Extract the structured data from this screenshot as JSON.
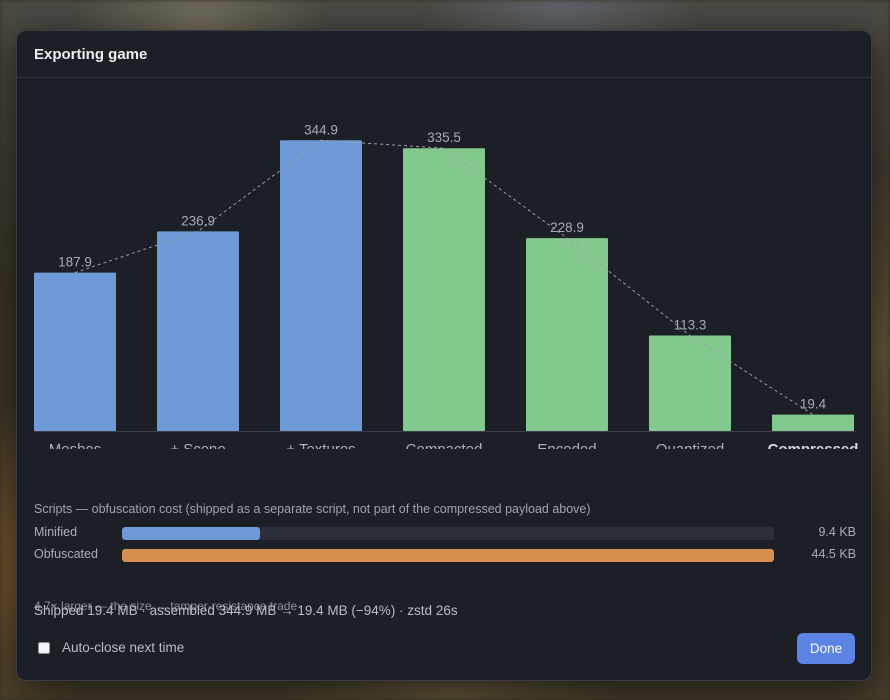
{
  "dialog": {
    "title": "Exporting game",
    "scripts": {
      "caption": "Scripts — obfuscation cost (shipped as a separate script, not part of the compressed payload above)",
      "rows": [
        {
          "label": "Minified",
          "value": "9.4 KB",
          "fraction": 0.211,
          "color": "#6f9ad8"
        },
        {
          "label": "Obfuscated",
          "value": "44.5 KB",
          "fraction": 1.0,
          "color": "#d8904f"
        }
      ],
      "note": "4.7× larger — the size ↔ tamper-resistance trade"
    },
    "summary": "Shipped 19.4 MB · assembled 344.9 MB → 19.4 MB (−94%) · zstd 26s",
    "auto_close_label": "Auto-close next time",
    "auto_close_checked": false,
    "done_label": "Done"
  },
  "chart_data": {
    "type": "bar",
    "categories": [
      "Meshes",
      "+ Scene",
      "+ Textures",
      "Compacted",
      "Encoded",
      "Quantized",
      "Compressed"
    ],
    "values": [
      187.9,
      236.9,
      344.9,
      335.5,
      228.9,
      113.3,
      19.4
    ],
    "value_labels": [
      "187.9",
      "236.9",
      "344.9",
      "335.5",
      "228.9",
      "113.3",
      "19.4"
    ],
    "bar_colors": [
      "#6f9ad8",
      "#6f9ad8",
      "#6f9ad8",
      "#83c98d",
      "#83c98d",
      "#83c98d",
      "#83c98d"
    ],
    "emphasized_category": "Compressed",
    "trend_line": "dashed, connecting bar tops",
    "ylim": [
      0,
      350
    ],
    "grid": false
  }
}
